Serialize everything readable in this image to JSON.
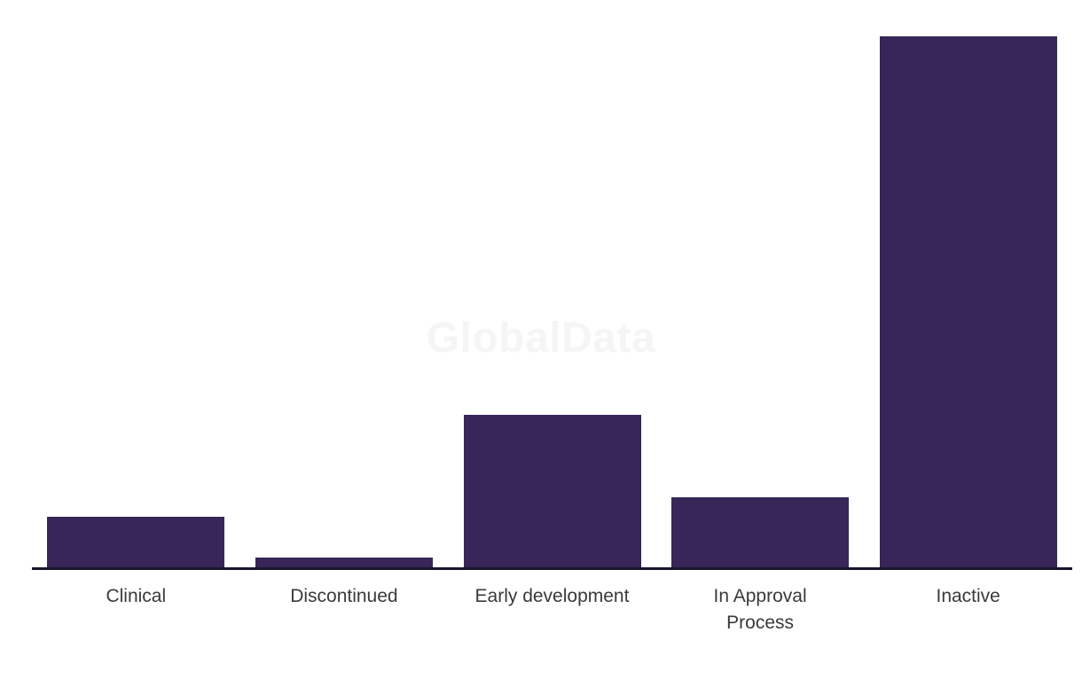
{
  "watermark": "GlobalData",
  "colors": {
    "background": "#ffffff",
    "bar": "#372657",
    "axis": "#15152d",
    "label": "#3a3a3a",
    "watermark": "#f5f5f5"
  },
  "x_labels": [
    "Clinical",
    "Discontinued",
    "Early development",
    "In Approval\nProcess",
    "Inactive"
  ],
  "chart_data": {
    "type": "bar",
    "categories": [
      "Clinical",
      "Discontinued",
      "Early development",
      "In Approval Process",
      "Inactive"
    ],
    "values": [
      58,
      12,
      173,
      80,
      600
    ],
    "title": "",
    "xlabel": "",
    "ylabel": "",
    "ylim": [
      0,
      600
    ],
    "grid": false,
    "legend": false,
    "bar_color": "#372657",
    "watermark": "GlobalData"
  }
}
